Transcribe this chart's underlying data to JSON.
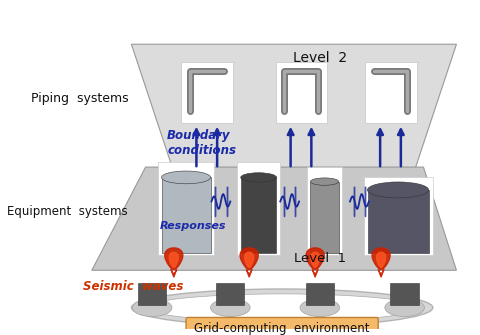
{
  "bg_color": "#ffffff",
  "level2_label": "Level  2",
  "level1_label": "Level  1",
  "piping_label": "Piping  systems",
  "equipment_label": "Equipment  systems",
  "seismic_label": "Seismic  waves",
  "boundary_label": "Boundary\nconditions",
  "responses_label": "Responses",
  "grid_label": "Grid-computing  environment",
  "level2_plate_color": "#dcdcdc",
  "level1_plate_color": "#c8c8c8",
  "arrow_color": "#1a2a99",
  "seismic_color": "#cc2200",
  "grid_box_color": "#f5b96a",
  "text_color_black": "#111111",
  "text_color_blue": "#1a2aaa",
  "text_color_orange": "#cc3300",
  "pipe_box_white": "#ffffff",
  "equip_box_white": "#ffffff"
}
